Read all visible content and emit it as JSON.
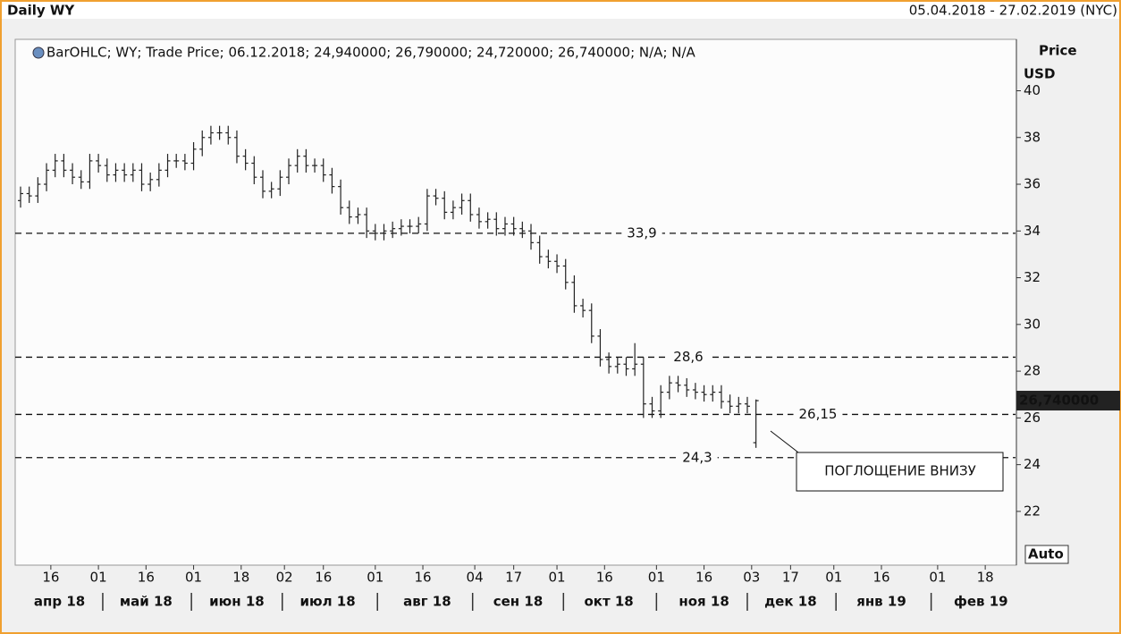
{
  "chart_data": {
    "type": "ohlc",
    "title": "Daily WY",
    "date_range": "05.04.2018 - 27.02.2019 (NYC)",
    "legend_text": "BarOHLC; WY; Trade Price; 06.12.2018; 24,940000; 26,790000; 24,720000; 26,740000; N/A; N/A",
    "y_axis_label": "Price",
    "y_axis_unit": "USD",
    "scale_mode": "Auto",
    "color": "#222222",
    "xlim": [
      0,
      230
    ],
    "ylim": [
      19.7,
      42.2
    ],
    "yticks": [
      22,
      24,
      26,
      28,
      30,
      32,
      34,
      36,
      38,
      40
    ],
    "xticks": [
      {
        "value": 7,
        "label": "16"
      },
      {
        "value": 18,
        "label": "01"
      },
      {
        "value": 29,
        "label": "16"
      },
      {
        "value": 40,
        "label": "01"
      },
      {
        "value": 51,
        "label": "18"
      },
      {
        "value": 61,
        "label": "02"
      },
      {
        "value": 70,
        "label": "16"
      },
      {
        "value": 82,
        "label": "01"
      },
      {
        "value": 93,
        "label": "16"
      },
      {
        "value": 105,
        "label": "04"
      },
      {
        "value": 114,
        "label": "17"
      },
      {
        "value": 124,
        "label": "01"
      },
      {
        "value": 135,
        "label": "16"
      },
      {
        "value": 147,
        "label": "01"
      },
      {
        "value": 158,
        "label": "16"
      },
      {
        "value": 169,
        "label": "03"
      },
      {
        "value": 178,
        "label": "17"
      },
      {
        "value": 188,
        "label": "01"
      },
      {
        "value": 199,
        "label": "16"
      },
      {
        "value": 212,
        "label": "01"
      },
      {
        "value": 223,
        "label": "18"
      }
    ],
    "months": [
      {
        "value": 9,
        "label": "апр 18"
      },
      {
        "value": 29,
        "label": "май 18"
      },
      {
        "value": 50,
        "label": "июн 18"
      },
      {
        "value": 71,
        "label": "июл 18"
      },
      {
        "value": 94,
        "label": "авг 18"
      },
      {
        "value": 115,
        "label": "сен 18"
      },
      {
        "value": 136,
        "label": "окт 18"
      },
      {
        "value": 158,
        "label": "ноя 18"
      },
      {
        "value": 178,
        "label": "дек 18"
      },
      {
        "value": 199,
        "label": "янв 19"
      },
      {
        "value": 222,
        "label": "фев 19"
      }
    ],
    "levels": [
      {
        "value": 33.9,
        "label": "33,9"
      },
      {
        "value": 28.6,
        "label": "28,6"
      },
      {
        "value": 26.15,
        "label": "26,15"
      },
      {
        "value": 24.3,
        "label": "24,3"
      }
    ],
    "last_price": {
      "value": 26.74,
      "label": "26,740000"
    },
    "annotation": "ПОГЛОЩЕНИЕ ВНИЗУ",
    "x": [
      0,
      2,
      4,
      6,
      8,
      10,
      12,
      14,
      16,
      18,
      20,
      22,
      24,
      26,
      28,
      30,
      32,
      34,
      36,
      38,
      40,
      42,
      44,
      46,
      48,
      50,
      52,
      54,
      56,
      58,
      60,
      62,
      64,
      66,
      68,
      70,
      72,
      74,
      76,
      78,
      80,
      82,
      84,
      86,
      88,
      90,
      92,
      94,
      96,
      98,
      100,
      102,
      104,
      106,
      108,
      110,
      112,
      114,
      116,
      118,
      120,
      122,
      124,
      126,
      128,
      130,
      132,
      134,
      136,
      138,
      140,
      142,
      144,
      146,
      148,
      150,
      152,
      154,
      156,
      158,
      160,
      162,
      164,
      166,
      168,
      170
    ],
    "open": [
      35.3,
      35.6,
      35.5,
      36.0,
      36.6,
      37.0,
      36.6,
      36.3,
      36.1,
      37.0,
      36.8,
      36.4,
      36.6,
      36.4,
      36.6,
      36.0,
      36.2,
      36.6,
      37.0,
      37.0,
      36.9,
      37.5,
      38.0,
      38.2,
      38.2,
      38.0,
      37.2,
      36.9,
      36.3,
      35.7,
      35.8,
      36.3,
      36.8,
      37.2,
      36.8,
      36.8,
      36.4,
      35.9,
      35.0,
      34.6,
      34.7,
      34.0,
      33.9,
      34.0,
      34.1,
      34.2,
      34.2,
      34.3,
      35.5,
      35.4,
      34.8,
      35.0,
      35.3,
      34.7,
      34.4,
      34.5,
      34.1,
      34.3,
      34.1,
      34.0,
      33.5,
      32.9,
      32.7,
      32.5,
      31.8,
      30.8,
      30.6,
      29.5,
      28.5,
      28.2,
      28.3,
      28.1,
      28.3,
      26.6,
      26.3,
      27.1,
      27.5,
      27.4,
      27.2,
      27.1,
      27.0,
      27.1,
      26.7,
      26.5,
      26.6,
      24.94
    ],
    "high": [
      35.9,
      35.9,
      36.3,
      36.9,
      37.3,
      37.3,
      36.9,
      36.6,
      37.3,
      37.3,
      37.1,
      36.9,
      36.9,
      36.9,
      36.9,
      36.5,
      36.9,
      37.3,
      37.3,
      37.3,
      37.8,
      38.3,
      38.5,
      38.5,
      38.5,
      38.3,
      37.5,
      37.2,
      36.6,
      36.1,
      36.6,
      37.1,
      37.5,
      37.5,
      37.1,
      37.1,
      36.7,
      36.2,
      35.3,
      35.0,
      35.0,
      34.3,
      34.3,
      34.4,
      34.5,
      34.5,
      34.6,
      35.8,
      35.8,
      35.7,
      35.3,
      35.6,
      35.6,
      35.0,
      34.8,
      34.8,
      34.6,
      34.6,
      34.4,
      34.3,
      33.8,
      33.2,
      33.0,
      32.8,
      32.1,
      31.1,
      30.9,
      29.8,
      28.8,
      28.6,
      28.6,
      29.2,
      28.6,
      26.9,
      27.4,
      27.8,
      27.8,
      27.7,
      27.5,
      27.4,
      27.4,
      27.4,
      27.0,
      26.9,
      26.9,
      26.79
    ],
    "low": [
      35.0,
      35.2,
      35.2,
      35.7,
      36.3,
      36.3,
      36.0,
      35.8,
      35.8,
      36.5,
      36.1,
      36.1,
      36.1,
      36.1,
      35.7,
      35.7,
      35.9,
      36.3,
      36.7,
      36.6,
      36.6,
      37.2,
      37.7,
      37.9,
      37.7,
      36.9,
      36.6,
      36.0,
      35.4,
      35.4,
      35.5,
      36.0,
      36.5,
      36.5,
      36.5,
      36.1,
      35.6,
      34.7,
      34.3,
      34.3,
      33.7,
      33.6,
      33.6,
      33.7,
      33.8,
      33.9,
      33.9,
      34.0,
      35.1,
      34.5,
      34.5,
      34.7,
      34.4,
      34.1,
      34.1,
      33.8,
      33.8,
      33.8,
      33.7,
      33.2,
      32.6,
      32.4,
      32.2,
      31.5,
      30.5,
      30.3,
      29.2,
      28.2,
      27.9,
      27.9,
      27.8,
      27.8,
      26.0,
      26.0,
      26.0,
      26.8,
      27.1,
      26.9,
      26.8,
      26.7,
      26.7,
      26.4,
      26.2,
      26.2,
      26.2,
      24.72
    ],
    "close": [
      35.6,
      35.5,
      36.0,
      36.6,
      37.0,
      36.6,
      36.3,
      36.1,
      37.0,
      36.8,
      36.4,
      36.6,
      36.4,
      36.6,
      36.0,
      36.2,
      36.6,
      37.0,
      37.0,
      36.9,
      37.5,
      38.0,
      38.2,
      38.2,
      38.0,
      37.2,
      36.9,
      36.3,
      35.7,
      35.8,
      36.3,
      36.8,
      37.2,
      36.8,
      36.8,
      36.4,
      35.9,
      35.0,
      34.6,
      34.7,
      34.0,
      33.9,
      34.0,
      34.1,
      34.2,
      34.2,
      34.3,
      35.5,
      35.4,
      34.8,
      35.0,
      35.3,
      34.7,
      34.4,
      34.5,
      34.1,
      34.3,
      34.1,
      34.0,
      33.5,
      32.9,
      32.7,
      32.5,
      31.8,
      30.8,
      30.6,
      29.5,
      28.5,
      28.2,
      28.3,
      28.1,
      28.3,
      26.6,
      26.3,
      27.1,
      27.5,
      27.4,
      27.2,
      27.1,
      27.0,
      27.1,
      26.7,
      26.5,
      26.6,
      26.5,
      26.74
    ]
  }
}
